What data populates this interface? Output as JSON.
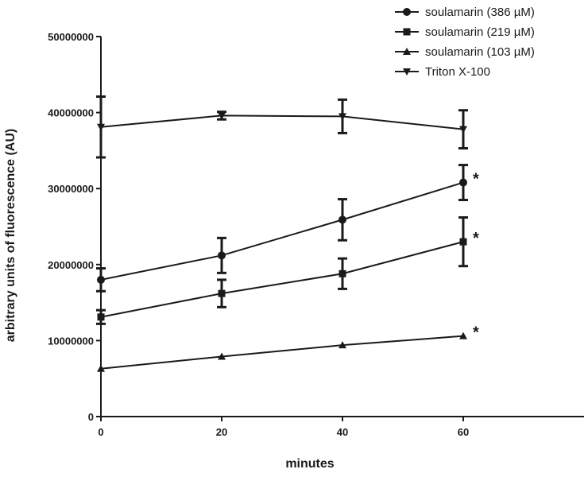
{
  "chart_data": {
    "type": "line",
    "title": "",
    "xlabel": "minutes",
    "ylabel": "arbitrary units of fluorescence (AU)",
    "x": [
      0,
      20,
      40,
      60
    ],
    "xlim": [
      0,
      80
    ],
    "ylim": [
      0,
      50000000
    ],
    "xticks": [
      0,
      20,
      40,
      60
    ],
    "yticks": [
      0,
      10000000,
      20000000,
      30000000,
      40000000,
      50000000
    ],
    "xtick_labels": [
      "0",
      "20",
      "40",
      "60"
    ],
    "ytick_labels": [
      "0",
      "10000000",
      "20000000",
      "30000000",
      "40000000",
      "50000000"
    ],
    "grid": false,
    "legend_position": "top-right",
    "series": [
      {
        "name": "soulamarin (386 µM)",
        "marker": "circle",
        "values": [
          18000000,
          21200000,
          25900000,
          30800000
        ],
        "errors": [
          1500000,
          2300000,
          2700000,
          2300000
        ]
      },
      {
        "name": "soulamarin (219 µM)",
        "marker": "square",
        "values": [
          13100000,
          16200000,
          18800000,
          23000000
        ],
        "errors": [
          900000,
          1800000,
          2000000,
          3200000
        ]
      },
      {
        "name": "soulamarin (103 µM)",
        "marker": "triangle-up",
        "values": [
          6300000,
          7900000,
          9400000,
          10600000
        ],
        "errors": [
          0,
          0,
          0,
          0
        ]
      },
      {
        "name": "Triton X-100",
        "marker": "triangle-down",
        "values": [
          38100000,
          39600000,
          39500000,
          37800000
        ],
        "errors": [
          4000000,
          500000,
          2200000,
          2500000
        ]
      }
    ],
    "annotations": [
      {
        "text": "*",
        "x": 60,
        "y": 30800000
      },
      {
        "text": "*",
        "x": 60,
        "y": 23000000
      },
      {
        "text": "*",
        "x": 60,
        "y": 10600000
      }
    ]
  }
}
